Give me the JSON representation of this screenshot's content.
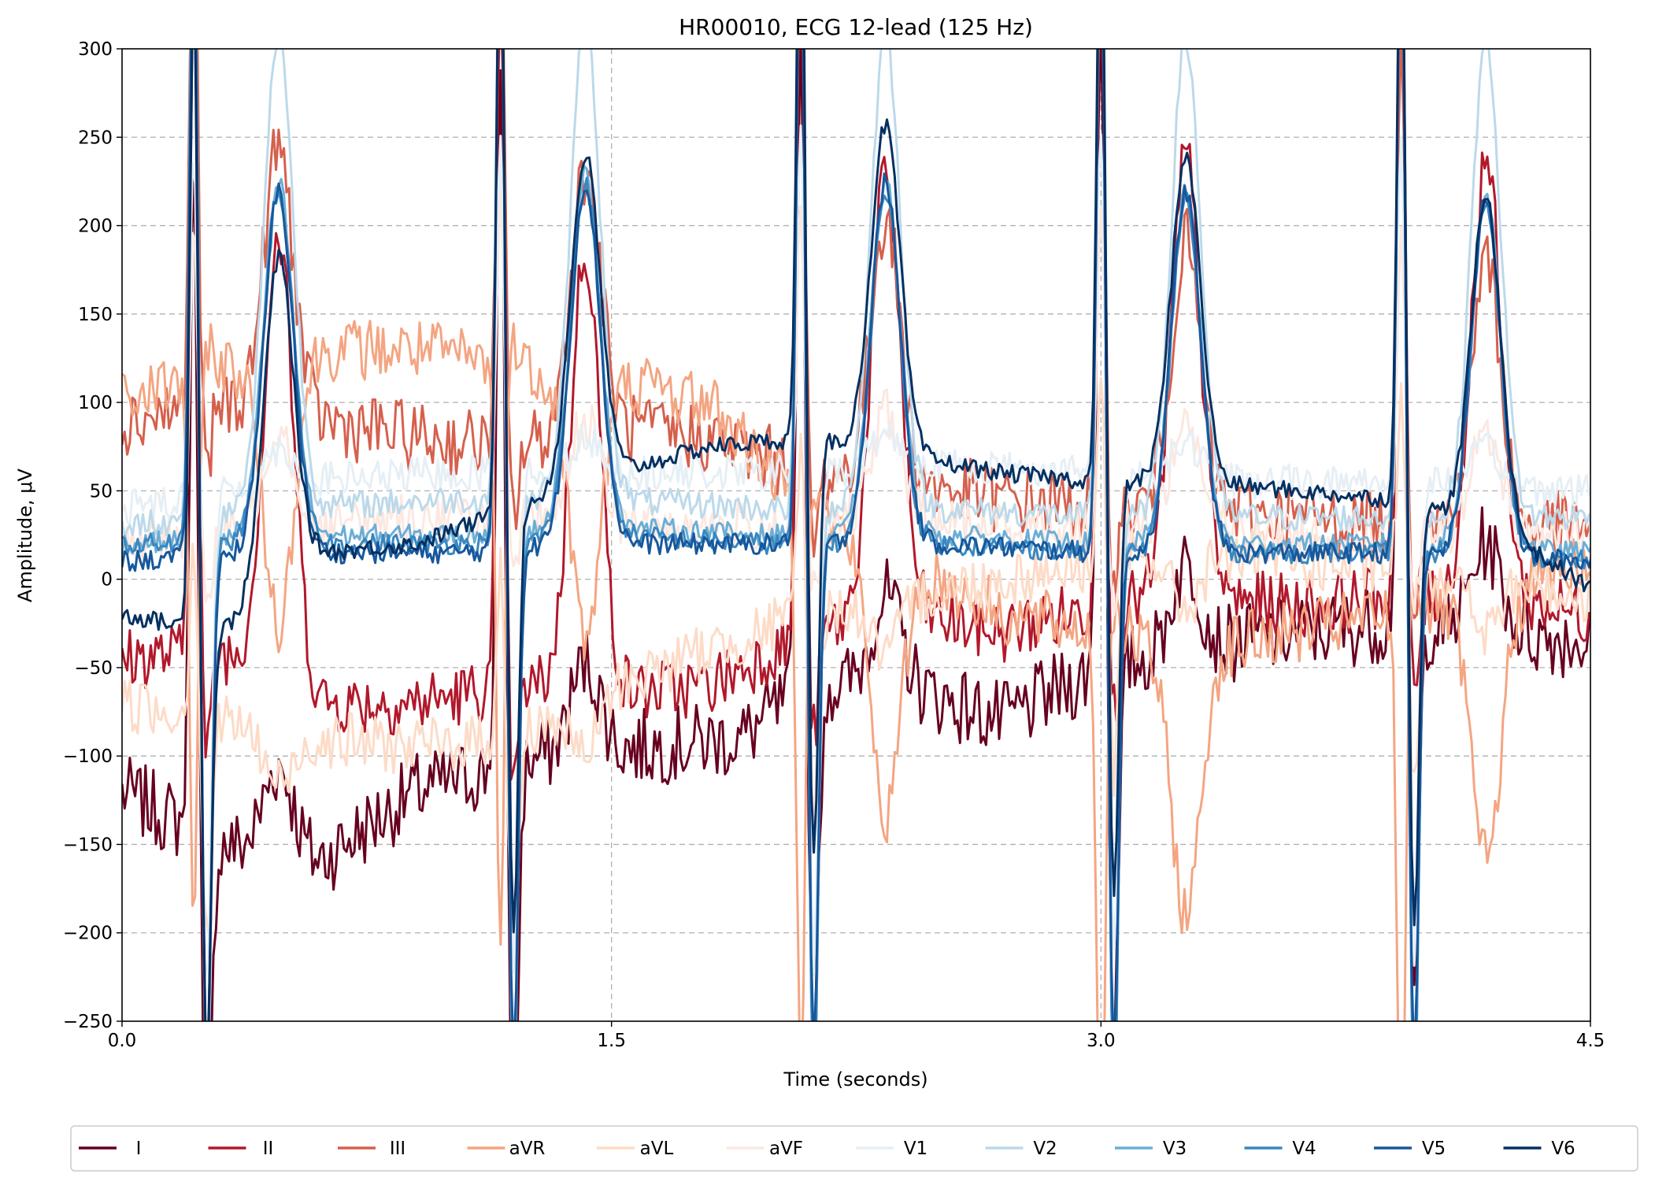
{
  "chart_data": {
    "type": "line",
    "title": "HR00010, ECG 12-lead (125 Hz)",
    "xlabel": "Time (seconds)",
    "ylabel": "Amplitude, μV",
    "xlim": [
      0,
      4.5
    ],
    "ylim": [
      -250,
      300
    ],
    "x_ticks": [
      "0.0",
      "1.5",
      "3.0",
      "4.5"
    ],
    "y_ticks": [
      "300",
      "250",
      "200",
      "150",
      "100",
      "50",
      "0",
      "−50",
      "−100",
      "−150",
      "−200",
      "−250"
    ],
    "grid": "y-dashed; x-dashed at 1.5 and 3.0",
    "legend_position": "bottom",
    "sample_rate_hz": 125,
    "r_peaks_s": [
      0.22,
      1.16,
      2.08,
      3.0,
      3.92
    ],
    "series": [
      {
        "name": "I",
        "color": "#67001f",
        "baseline_uV": -95,
        "r_uV": 380,
        "s_uV": -210,
        "t_uV": 50,
        "noise_uV": 22,
        "waypoints": [
          [
            0.0,
            -120
          ],
          [
            0.3,
            -150
          ],
          [
            0.6,
            -160
          ],
          [
            0.9,
            -120
          ],
          [
            1.1,
            -110
          ],
          [
            1.3,
            -100
          ],
          [
            1.6,
            -95
          ],
          [
            1.9,
            -90
          ],
          [
            2.1,
            -60
          ],
          [
            2.4,
            -60
          ],
          [
            2.7,
            -80
          ],
          [
            3.0,
            -50
          ],
          [
            3.3,
            -40
          ],
          [
            3.6,
            -30
          ],
          [
            3.9,
            -25
          ],
          [
            4.2,
            -30
          ],
          [
            4.5,
            -35
          ]
        ]
      },
      {
        "name": "II",
        "color": "#b2182b",
        "baseline_uV": -60,
        "r_uV": 400,
        "s_uV": -60,
        "t_uV": 250,
        "noise_uV": 18,
        "waypoints": [
          [
            0.0,
            -45
          ],
          [
            0.3,
            -40
          ],
          [
            0.6,
            -70
          ],
          [
            0.9,
            -70
          ],
          [
            1.2,
            -60
          ],
          [
            1.5,
            -65
          ],
          [
            1.8,
            -60
          ],
          [
            2.1,
            -30
          ],
          [
            2.4,
            -20
          ],
          [
            2.7,
            -30
          ],
          [
            3.0,
            -15
          ],
          [
            3.3,
            -10
          ],
          [
            3.6,
            -15
          ],
          [
            3.9,
            -10
          ],
          [
            4.2,
            -10
          ],
          [
            4.5,
            -20
          ]
        ]
      },
      {
        "name": "III",
        "color": "#d6604d",
        "baseline_uV": 80,
        "r_uV": 300,
        "s_uV": -40,
        "t_uV": 150,
        "noise_uV": 20,
        "waypoints": [
          [
            0.0,
            90
          ],
          [
            0.3,
            100
          ],
          [
            0.6,
            90
          ],
          [
            0.9,
            80
          ],
          [
            1.2,
            75
          ],
          [
            1.5,
            85
          ],
          [
            1.8,
            80
          ],
          [
            2.1,
            60
          ],
          [
            2.4,
            55
          ],
          [
            2.7,
            45
          ],
          [
            3.0,
            40
          ],
          [
            3.3,
            40
          ],
          [
            3.6,
            35
          ],
          [
            3.9,
            30
          ],
          [
            4.2,
            30
          ],
          [
            4.5,
            30
          ]
        ]
      },
      {
        "name": "aVR",
        "color": "#f4a582",
        "baseline_uV": 120,
        "r_uV": -330,
        "s_uV": 20,
        "t_uV": -150,
        "noise_uV": 18,
        "waypoints": [
          [
            0.0,
            100
          ],
          [
            0.3,
            120
          ],
          [
            0.6,
            130
          ],
          [
            0.9,
            130
          ],
          [
            1.2,
            120
          ],
          [
            1.5,
            115
          ],
          [
            1.8,
            100
          ],
          [
            2.1,
            40
          ],
          [
            2.4,
            10
          ],
          [
            2.7,
            -20
          ],
          [
            3.0,
            -30
          ],
          [
            3.3,
            -40
          ],
          [
            3.6,
            -30
          ],
          [
            3.9,
            -20
          ],
          [
            4.2,
            -10
          ],
          [
            4.5,
            10
          ]
        ]
      },
      {
        "name": "aVL",
        "color": "#fddbc7",
        "baseline_uV": -70,
        "r_uV": 100,
        "s_uV": -120,
        "t_uV": -30,
        "noise_uV": 16,
        "waypoints": [
          [
            0.0,
            -70
          ],
          [
            0.3,
            -80
          ],
          [
            0.6,
            -90
          ],
          [
            0.9,
            -95
          ],
          [
            1.2,
            -90
          ],
          [
            1.5,
            -60
          ],
          [
            1.8,
            -40
          ],
          [
            2.1,
            -20
          ],
          [
            2.4,
            -10
          ],
          [
            2.7,
            0
          ],
          [
            3.0,
            10
          ],
          [
            3.3,
            15
          ],
          [
            3.6,
            10
          ],
          [
            3.9,
            5
          ],
          [
            4.2,
            0
          ],
          [
            4.5,
            -10
          ]
        ]
      },
      {
        "name": "aVF",
        "color": "#fbe8e0",
        "baseline_uV": 30,
        "r_uV": 180,
        "s_uV": -40,
        "t_uV": 60,
        "noise_uV": 14,
        "waypoints": [
          [
            0.0,
            20
          ],
          [
            0.3,
            25
          ],
          [
            0.6,
            30
          ],
          [
            0.9,
            35
          ],
          [
            1.2,
            35
          ],
          [
            1.5,
            30
          ],
          [
            1.8,
            30
          ],
          [
            2.1,
            30
          ],
          [
            2.4,
            35
          ],
          [
            2.7,
            30
          ],
          [
            3.0,
            30
          ],
          [
            3.3,
            30
          ],
          [
            3.6,
            25
          ],
          [
            3.9,
            25
          ],
          [
            4.2,
            25
          ],
          [
            4.5,
            25
          ]
        ]
      },
      {
        "name": "V1",
        "color": "#e6eff5",
        "baseline_uV": 55,
        "r_uV": 200,
        "s_uV": -280,
        "t_uV": 20,
        "noise_uV": 10,
        "waypoints": [
          [
            0.0,
            40
          ],
          [
            0.5,
            55
          ],
          [
            1.0,
            60
          ],
          [
            1.5,
            60
          ],
          [
            2.0,
            60
          ],
          [
            2.5,
            65
          ],
          [
            3.0,
            60
          ],
          [
            3.5,
            55
          ],
          [
            4.0,
            55
          ],
          [
            4.5,
            50
          ]
        ]
      },
      {
        "name": "V2",
        "color": "#bcd9ea",
        "baseline_uV": 40,
        "r_uV": 380,
        "s_uV": -330,
        "t_uV": 270,
        "noise_uV": 8,
        "waypoints": [
          [
            0.0,
            30
          ],
          [
            0.5,
            40
          ],
          [
            1.0,
            45
          ],
          [
            1.5,
            45
          ],
          [
            2.0,
            40
          ],
          [
            2.5,
            40
          ],
          [
            3.0,
            35
          ],
          [
            3.5,
            35
          ],
          [
            4.0,
            35
          ],
          [
            4.5,
            35
          ]
        ]
      },
      {
        "name": "V3",
        "color": "#6baed6",
        "baseline_uV": 25,
        "r_uV": 380,
        "s_uV": -320,
        "t_uV": 200,
        "noise_uV": 6,
        "waypoints": [
          [
            0.0,
            20
          ],
          [
            0.5,
            25
          ],
          [
            1.0,
            25
          ],
          [
            1.5,
            30
          ],
          [
            2.0,
            25
          ],
          [
            2.5,
            25
          ],
          [
            3.0,
            20
          ],
          [
            3.5,
            20
          ],
          [
            4.0,
            20
          ],
          [
            4.5,
            15
          ]
        ]
      },
      {
        "name": "V4",
        "color": "#3a87c0",
        "baseline_uV": 20,
        "r_uV": 380,
        "s_uV": -310,
        "t_uV": 200,
        "noise_uV": 6,
        "waypoints": [
          [
            0.0,
            20
          ],
          [
            0.5,
            20
          ],
          [
            1.0,
            20
          ],
          [
            1.5,
            25
          ],
          [
            2.0,
            20
          ],
          [
            2.5,
            20
          ],
          [
            3.0,
            15
          ],
          [
            3.5,
            15
          ],
          [
            4.0,
            15
          ],
          [
            4.5,
            10
          ]
        ]
      },
      {
        "name": "V5",
        "color": "#16589c",
        "baseline_uV": 15,
        "r_uV": 380,
        "s_uV": -290,
        "t_uV": 205,
        "noise_uV": 6,
        "waypoints": [
          [
            0.0,
            10
          ],
          [
            0.5,
            15
          ],
          [
            1.0,
            15
          ],
          [
            1.5,
            20
          ],
          [
            2.0,
            20
          ],
          [
            2.5,
            20
          ],
          [
            3.0,
            15
          ],
          [
            3.5,
            15
          ],
          [
            4.0,
            15
          ],
          [
            4.5,
            10
          ]
        ]
      },
      {
        "name": "V6",
        "color": "#053061",
        "baseline_uV": 30,
        "r_uV": 370,
        "s_uV": -240,
        "t_uV": 185,
        "noise_uV": 5,
        "waypoints": [
          [
            0.0,
            -20
          ],
          [
            0.3,
            -30
          ],
          [
            0.6,
            15
          ],
          [
            0.9,
            20
          ],
          [
            1.2,
            40
          ],
          [
            1.5,
            60
          ],
          [
            1.8,
            75
          ],
          [
            2.1,
            80
          ],
          [
            2.4,
            70
          ],
          [
            2.7,
            60
          ],
          [
            3.0,
            55
          ],
          [
            3.3,
            55
          ],
          [
            3.6,
            50
          ],
          [
            3.9,
            45
          ],
          [
            4.2,
            30
          ],
          [
            4.5,
            -5
          ]
        ]
      }
    ]
  }
}
